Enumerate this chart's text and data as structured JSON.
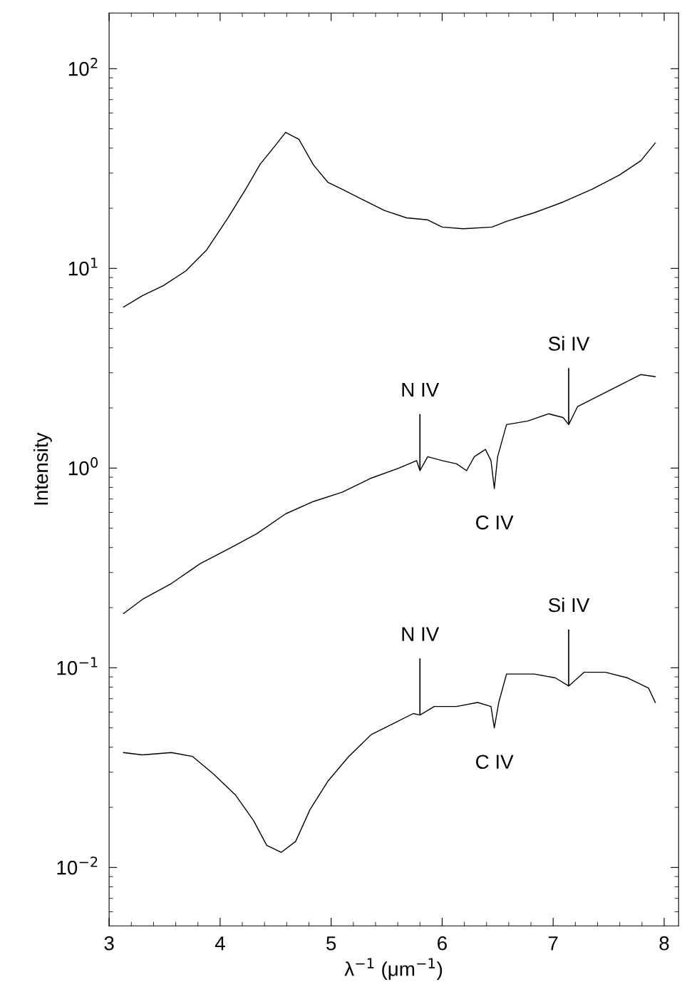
{
  "chart_data": {
    "type": "line",
    "xlabel": "λ$^{−1}$ (μm$^{−1}$)",
    "ylabel": "Intensity",
    "log": "y",
    "grid": false,
    "legend": false,
    "marker": "none",
    "line_style": "solid",
    "xlim": [
      3,
      8.13
    ],
    "xticks": [
      3,
      4,
      5,
      6,
      7,
      8
    ],
    "ylim": [
      0.0051,
      190
    ],
    "yticks": [
      {
        "value": 0.01,
        "label": "10$^{−2}$"
      },
      {
        "value": 0.1,
        "label": "10$^{−1}$"
      },
      {
        "value": 1,
        "label": "10$^{0}$"
      },
      {
        "value": 10,
        "label": "10$^{1}$"
      },
      {
        "value": 100,
        "label": "10$^{2}$"
      }
    ],
    "series": [
      {
        "color": "#000000",
        "x": [
          3.13,
          3.3,
          3.49,
          3.69,
          3.88,
          4.07,
          4.23,
          4.36,
          4.49,
          4.59,
          4.71,
          4.84,
          4.97,
          5.1,
          5.29,
          5.48,
          5.68,
          5.87,
          6.0,
          6.19,
          6.45,
          6.58,
          6.83,
          7.09,
          7.35,
          7.6,
          7.79,
          7.92
        ],
        "values": [
          6.4,
          7.3,
          8.2,
          9.7,
          12.4,
          17.9,
          24.9,
          33.2,
          40.8,
          48,
          44.3,
          33,
          27,
          24.9,
          22,
          19.5,
          17.9,
          17.5,
          16.1,
          15.8,
          16.1,
          17.2,
          19,
          21.5,
          24.9,
          29.4,
          34.6,
          42.5
        ]
      },
      {
        "color": "#000000",
        "x": [
          3.13,
          3.3,
          3.56,
          3.82,
          4.07,
          4.33,
          4.59,
          4.84,
          5.1,
          5.36,
          5.61,
          5.77,
          5.8,
          5.87,
          6.0,
          6.13,
          6.22,
          6.29,
          6.39,
          6.44,
          6.47,
          6.5,
          6.58,
          6.77,
          6.96,
          7.09,
          7.14,
          7.22,
          7.41,
          7.6,
          7.79,
          7.92
        ],
        "values": [
          0.187,
          0.22,
          0.264,
          0.332,
          0.392,
          0.469,
          0.59,
          0.68,
          0.757,
          0.89,
          1.0,
          1.09,
          0.97,
          1.14,
          1.09,
          1.05,
          0.97,
          1.14,
          1.24,
          1.09,
          0.79,
          1.14,
          1.65,
          1.72,
          1.87,
          1.79,
          1.65,
          2.03,
          2.3,
          2.6,
          2.94,
          2.87
        ]
      },
      {
        "color": "#000000",
        "x": [
          3.13,
          3.3,
          3.56,
          3.75,
          3.94,
          4.14,
          4.3,
          4.42,
          4.55,
          4.68,
          4.81,
          4.97,
          5.16,
          5.36,
          5.55,
          5.74,
          5.8,
          5.93,
          6.13,
          6.32,
          6.44,
          6.47,
          6.51,
          6.58,
          6.83,
          7.02,
          7.14,
          7.28,
          7.47,
          7.67,
          7.86,
          7.92
        ],
        "values": [
          0.0376,
          0.0366,
          0.0376,
          0.036,
          0.0294,
          0.023,
          0.0172,
          0.0129,
          0.0119,
          0.0135,
          0.0195,
          0.027,
          0.036,
          0.0462,
          0.0522,
          0.059,
          0.058,
          0.064,
          0.064,
          0.067,
          0.064,
          0.05,
          0.067,
          0.093,
          0.093,
          0.089,
          0.081,
          0.095,
          0.095,
          0.089,
          0.079,
          0.067
        ]
      }
    ],
    "annotations": [
      {
        "text": "N IV",
        "x": 5.8,
        "y": 0.97
      },
      {
        "text": "Si IV",
        "x": 7.14,
        "y": 1.65
      },
      {
        "text": "C IV",
        "x": 6.47,
        "y": 0.79
      },
      {
        "text": "N IV",
        "x": 5.8,
        "y": 0.058
      },
      {
        "text": "Si IV",
        "x": 7.14,
        "y": 0.081
      },
      {
        "text": "C IV",
        "x": 6.47,
        "y": 0.05
      }
    ]
  }
}
